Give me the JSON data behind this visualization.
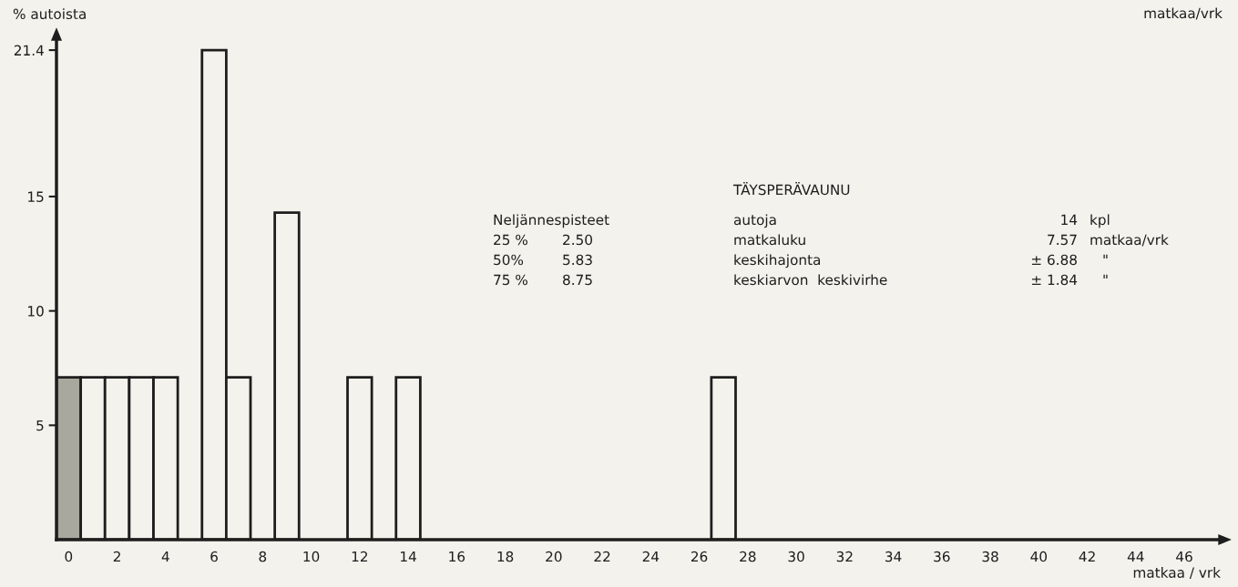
{
  "chart_data": {
    "type": "histogram",
    "title": "TÄYSPERÄVAUNU",
    "xlabel": "matkaa / vrk",
    "ylabel": "% autoista",
    "bins": [
      -0.5,
      0.5,
      1.5,
      2.5,
      3.5,
      4.5,
      5.5,
      6.5,
      7.5,
      8.5,
      9.5,
      10.5,
      11.5,
      12.5,
      13.5,
      14.5,
      15.5,
      16.5,
      17.5,
      18.5,
      19.5,
      20.5,
      21.5,
      22.5,
      23.5,
      24.5,
      25.5,
      26.5,
      27.5
    ],
    "values": [
      7.1,
      7.1,
      7.1,
      7.1,
      7.1,
      0,
      21.4,
      7.1,
      0,
      14.3,
      0,
      0,
      7.1,
      0,
      7.1,
      0,
      0,
      0,
      0,
      0,
      0,
      0,
      0,
      0,
      0,
      0,
      0,
      7.1
    ],
    "colors": [
      "#a9a89f",
      "#f3f2ec",
      "#f3f2ec",
      "#f3f2ec",
      "#f3f2ec",
      "#f3f2ec",
      "#f3f2ec",
      "#f3f2ec",
      "#f3f2ec",
      "#f3f2ec",
      "#f3f2ec",
      "#f3f2ec",
      "#f3f2ec",
      "#f3f2ec",
      "#f3f2ec",
      "#f3f2ec",
      "#f3f2ec",
      "#f3f2ec",
      "#f3f2ec",
      "#f3f2ec",
      "#f3f2ec",
      "#f3f2ec",
      "#f3f2ec",
      "#f3f2ec",
      "#f3f2ec",
      "#f3f2ec",
      "#f3f2ec",
      "#f3f2ec"
    ],
    "xlim": [
      -0.5,
      47.5
    ],
    "xticks": [
      0,
      2,
      4,
      6,
      8,
      10,
      12,
      14,
      16,
      18,
      20,
      22,
      24,
      26,
      28,
      30,
      32,
      34,
      36,
      38,
      40,
      42,
      44,
      46
    ],
    "ylim": [
      0,
      22
    ],
    "yticks": [
      5,
      10,
      15,
      21.4
    ],
    "annotations": [
      "Neljännespisteet",
      "autoja",
      "14",
      "kpl",
      "25 %",
      "2.50",
      "matkaluku",
      "7.57",
      "matkaa/vrk",
      "50%",
      "5.83",
      "keskihajonta",
      "± 6.88",
      "\"",
      "75 %",
      "8.75",
      "keskiarvon  keskivirhe",
      "± 1.84",
      "\"",
      "matkaa/vrk"
    ]
  }
}
